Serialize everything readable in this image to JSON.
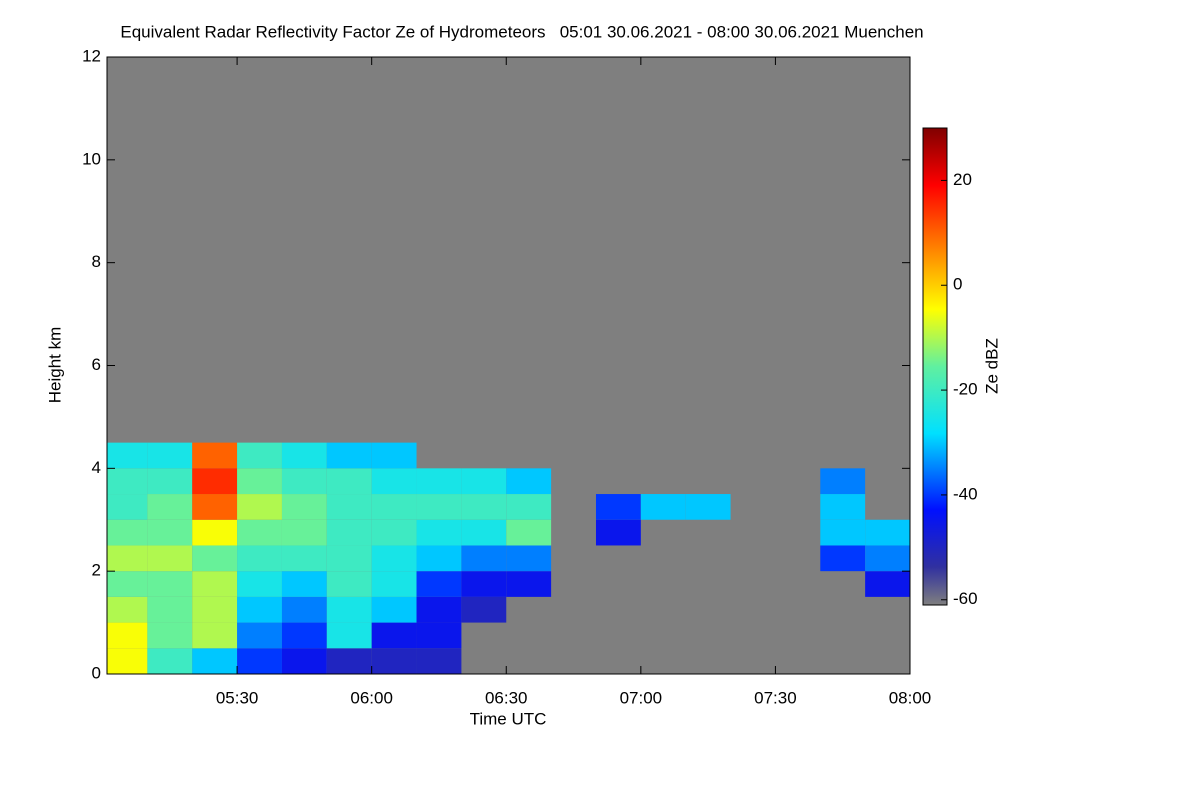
{
  "chart_data": {
    "type": "heatmap",
    "title": "Equivalent Radar Reflectivity Factor Ze of Hydrometeors   05:01 30.06.2021 - 08:00 30.06.2021 Muenchen",
    "x_label": "Time UTC",
    "y_label": "Height km",
    "colorbar_label": "Ze dBZ",
    "xlim": [
      301,
      480
    ],
    "xticks": [
      {
        "value": 330,
        "label": "05:30"
      },
      {
        "value": 360,
        "label": "06:00"
      },
      {
        "value": 390,
        "label": "06:30"
      },
      {
        "value": 420,
        "label": "07:00"
      },
      {
        "value": 450,
        "label": "07:30"
      },
      {
        "value": 480,
        "label": "08:00"
      }
    ],
    "ylim": [
      0,
      12
    ],
    "yticks": [
      0,
      2,
      4,
      6,
      8,
      10,
      12
    ],
    "clim": [
      -61,
      30
    ],
    "cticks": [
      -60,
      -40,
      -20,
      0,
      20
    ],
    "x_bins": [
      301,
      310,
      320,
      330,
      340,
      350,
      360,
      370,
      380,
      390,
      400,
      410,
      420,
      430,
      440,
      450,
      460,
      470,
      480
    ],
    "y_bins": [
      0,
      0.5,
      1,
      1.5,
      2,
      2.5,
      3,
      3.5,
      4,
      4.5,
      5
    ],
    "z": [
      [
        -5,
        -20,
        -30,
        -40,
        -45,
        -50,
        -50,
        -50,
        null,
        null,
        null,
        null,
        null,
        null,
        null,
        null,
        null,
        null
      ],
      [
        -5,
        -15,
        -10,
        -35,
        -40,
        -25,
        -45,
        -45,
        null,
        null,
        null,
        null,
        null,
        null,
        null,
        null,
        null,
        null
      ],
      [
        -10,
        -15,
        -10,
        -30,
        -35,
        -25,
        -30,
        -45,
        -50,
        null,
        null,
        null,
        null,
        null,
        null,
        null,
        null,
        null
      ],
      [
        -15,
        -15,
        -10,
        -25,
        -30,
        -20,
        -25,
        -40,
        -45,
        -45,
        null,
        null,
        null,
        null,
        null,
        null,
        null,
        -45
      ],
      [
        -10,
        -10,
        -15,
        -20,
        -20,
        -20,
        -25,
        -30,
        -35,
        -35,
        null,
        null,
        null,
        null,
        null,
        null,
        -40,
        -35
      ],
      [
        -15,
        -15,
        -5,
        -15,
        -15,
        -20,
        -20,
        -25,
        -25,
        -15,
        null,
        -45,
        null,
        null,
        null,
        null,
        -30,
        -30
      ],
      [
        -20,
        -15,
        10,
        -10,
        -15,
        -20,
        -20,
        -20,
        -20,
        -20,
        null,
        -40,
        -30,
        -30,
        null,
        null,
        -30,
        null
      ],
      [
        -20,
        -20,
        15,
        -15,
        -20,
        -20,
        -25,
        -25,
        -25,
        -30,
        null,
        null,
        null,
        null,
        null,
        null,
        -35,
        null
      ],
      [
        -25,
        -25,
        10,
        -20,
        -25,
        -30,
        -30,
        null,
        null,
        null,
        null,
        null,
        null,
        null,
        null,
        null,
        null,
        null
      ],
      [
        null,
        null,
        null,
        null,
        null,
        null,
        null,
        null,
        null,
        null,
        null,
        null,
        null,
        null,
        null,
        null,
        null,
        null
      ]
    ]
  }
}
